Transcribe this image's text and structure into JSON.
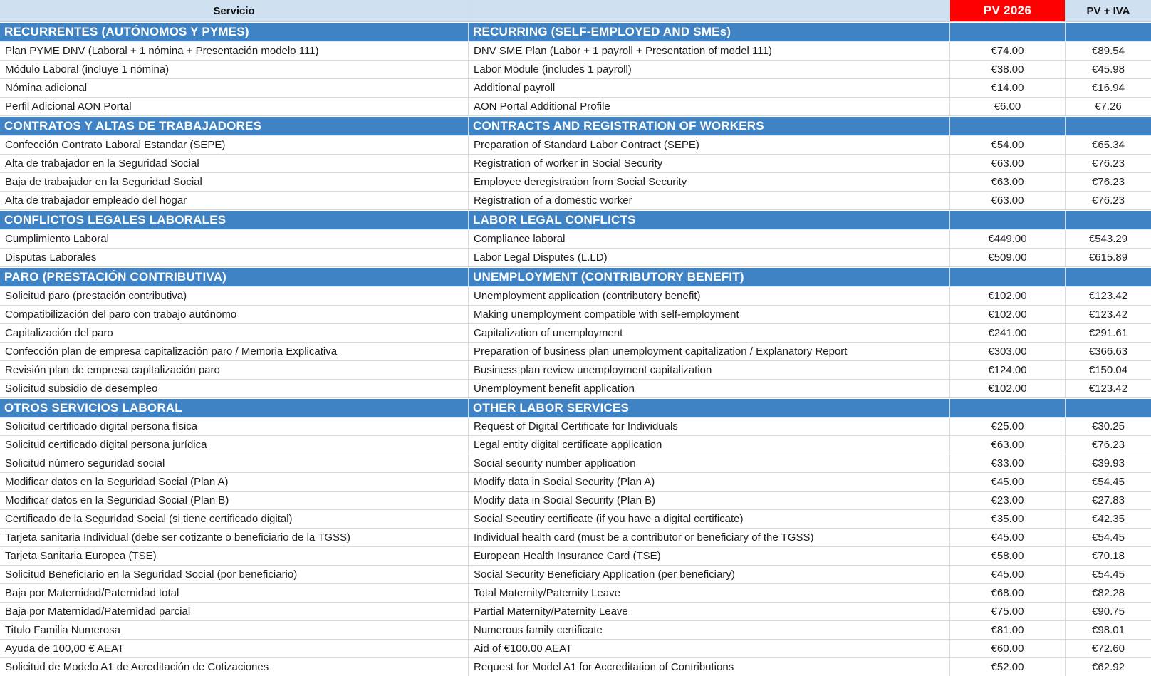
{
  "header": {
    "servicio_label": "Servicio",
    "english_label": "",
    "pv_label": "PV 2026",
    "pv_iva_label": "PV + IVA"
  },
  "colors": {
    "section_band": "#3f83c5",
    "header_bg": "#cfe0f1",
    "pv_header_bg": "#fe0000",
    "pv_header_text": "#ffffff",
    "row_border": "#d9d9d9",
    "grid_line": "#d5dce4"
  },
  "sections": [
    {
      "title_es": "RECURRENTES (AUTÓNOMOS Y PYMES)",
      "title_en": "RECURRING (SELF-EMPLOYED AND SMEs)",
      "rows": [
        {
          "es": "Plan PYME DNV (Laboral + 1 nómina + Presentación modelo 111)",
          "en": "DNV SME Plan (Labor + 1 payroll + Presentation of model 111)",
          "pv": "€74.00",
          "pv_iva": "€89.54"
        },
        {
          "es": "Módulo Laboral (incluye 1 nómina)",
          "en": "Labor Module (includes 1 payroll)",
          "pv": "€38.00",
          "pv_iva": "€45.98"
        },
        {
          "es": "Nómina adicional",
          "en": "Additional payroll",
          "pv": "€14.00",
          "pv_iva": "€16.94"
        },
        {
          "es": "Perfil Adicional AON Portal",
          "en": "AON Portal Additional Profile",
          "pv": "€6.00",
          "pv_iva": "€7.26"
        }
      ]
    },
    {
      "title_es": "CONTRATOS Y ALTAS DE TRABAJADORES",
      "title_en": "CONTRACTS AND REGISTRATION OF WORKERS",
      "rows": [
        {
          "es": "Confección Contrato Laboral Estandar (SEPE)",
          "en": "Preparation of Standard Labor Contract (SEPE)",
          "pv": "€54.00",
          "pv_iva": "€65.34"
        },
        {
          "es": "Alta de trabajador en la Seguridad Social",
          "en": "Registration of worker in Social Security",
          "pv": "€63.00",
          "pv_iva": "€76.23"
        },
        {
          "es": "Baja de trabajador en la Seguridad Social",
          "en": "Employee deregistration from Social Security",
          "pv": "€63.00",
          "pv_iva": "€76.23"
        },
        {
          "es": "Alta de trabajador empleado del hogar",
          "en": "Registration of a domestic worker",
          "pv": "€63.00",
          "pv_iva": "€76.23"
        }
      ]
    },
    {
      "title_es": "CONFLICTOS LEGALES LABORALES",
      "title_en": "LABOR LEGAL CONFLICTS",
      "rows": [
        {
          "es": "Cumplimiento Laboral",
          "en": "Compliance laboral",
          "pv": "€449.00",
          "pv_iva": "€543.29"
        },
        {
          "es": "Disputas Laborales",
          "en": "Labor Legal Disputes (L.LD)",
          "pv": "€509.00",
          "pv_iva": "€615.89"
        }
      ]
    },
    {
      "title_es": "PARO (PRESTACIÓN CONTRIBUTIVA)",
      "title_en": "UNEMPLOYMENT (CONTRIBUTORY BENEFIT)",
      "rows": [
        {
          "es": "Solicitud paro (prestación contributiva)",
          "en": "Unemployment application (contributory benefit)",
          "pv": "€102.00",
          "pv_iva": "€123.42"
        },
        {
          "es": "Compatibilización del paro con trabajo autónomo",
          "en": "Making unemployment compatible with self-employment",
          "pv": "€102.00",
          "pv_iva": "€123.42"
        },
        {
          "es": "Capitalización del paro",
          "en": "Capitalization of unemployment",
          "pv": "€241.00",
          "pv_iva": "€291.61"
        },
        {
          "es": "Confección plan de empresa capitalización paro / Memoria Explicativa",
          "en": "Preparation of business plan unemployment capitalization / Explanatory Report",
          "pv": "€303.00",
          "pv_iva": "€366.63"
        },
        {
          "es": "Revisión plan de empresa capitalización paro",
          "en": "Business plan review unemployment capitalization",
          "pv": "€124.00",
          "pv_iva": "€150.04"
        },
        {
          "es": "Solicitud subsidio de desempleo",
          "en": "Unemployment benefit application",
          "pv": "€102.00",
          "pv_iva": "€123.42"
        }
      ]
    },
    {
      "title_es": "OTROS SERVICIOS LABORAL",
      "title_en": "OTHER LABOR SERVICES",
      "rows": [
        {
          "es": "Solicitud certificado digital persona física",
          "en": "Request of Digital Certificate for Individuals",
          "pv": "€25.00",
          "pv_iva": "€30.25"
        },
        {
          "es": "Solicitud certificado digital persona jurídica",
          "en": "Legal entity digital certificate application",
          "pv": "€63.00",
          "pv_iva": "€76.23"
        },
        {
          "es": "Solicitud número seguridad social",
          "en": "Social security number application",
          "pv": "€33.00",
          "pv_iva": "€39.93"
        },
        {
          "es": "Modificar datos en la Seguridad Social (Plan A)",
          "en": "Modify data in Social Security (Plan A)",
          "pv": "€45.00",
          "pv_iva": "€54.45"
        },
        {
          "es": "Modificar datos en la Seguridad Social (Plan B)",
          "en": "Modify data in Social Security (Plan B)",
          "pv": "€23.00",
          "pv_iva": "€27.83"
        },
        {
          "es": "Certificado de la Seguridad Social (si tiene certificado digital)",
          "en": "Social Secutiry certificate (if you have a digital certificate)",
          "pv": "€35.00",
          "pv_iva": "€42.35"
        },
        {
          "es": "Tarjeta sanitaria Individual (debe ser cotizante o beneficiario de la TGSS)",
          "en": "Individual health card (must be a contributor or beneficiary of the TGSS)",
          "pv": "€45.00",
          "pv_iva": "€54.45"
        },
        {
          "es": "Tarjeta Sanitaria Europea (TSE)",
          "en": "European Health Insurance Card (TSE)",
          "pv": "€58.00",
          "pv_iva": "€70.18"
        },
        {
          "es": "Solicitud Beneficiario en la Seguridad Social (por beneficiario)",
          "en": "Social Security Beneficiary Application (per beneficiary)",
          "pv": "€45.00",
          "pv_iva": "€54.45"
        },
        {
          "es": "Baja por Maternidad/Paternidad total",
          "en": "Total Maternity/Paternity Leave",
          "pv": "€68.00",
          "pv_iva": "€82.28"
        },
        {
          "es": "Baja por Maternidad/Paternidad parcial",
          "en": "Partial Maternity/Paternity Leave",
          "pv": "€75.00",
          "pv_iva": "€90.75"
        },
        {
          "es": "Titulo Familia Numerosa",
          "en": "Numerous family certificate",
          "pv": "€81.00",
          "pv_iva": "€98.01"
        },
        {
          "es": "Ayuda de 100,00 € AEAT",
          "en": "Aid of €100.00 AEAT",
          "pv": "€60.00",
          "pv_iva": "€72.60"
        },
        {
          "es": "Solicitud de Modelo A1 de Acreditación de Cotizaciones",
          "en": "Request for Model A1 for Accreditation of Contributions",
          "pv": "€52.00",
          "pv_iva": "€62.92"
        }
      ]
    }
  ]
}
